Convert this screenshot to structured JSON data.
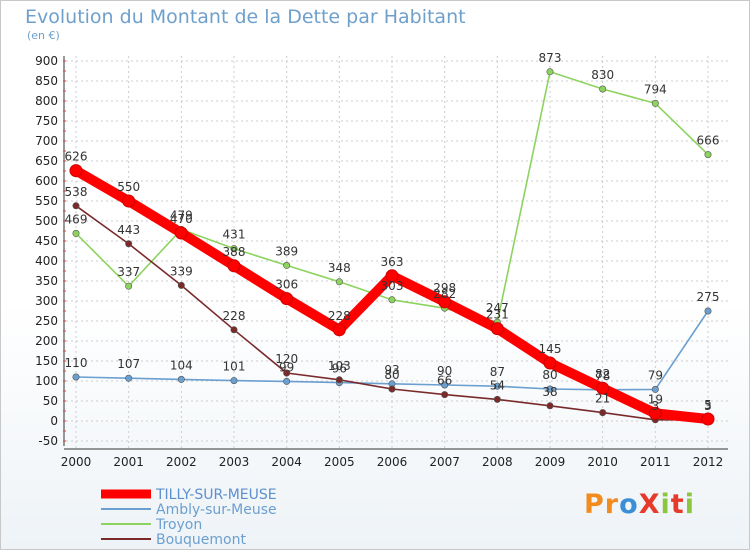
{
  "title": "Evolution du Montant de la Dette par Habitant",
  "subtitle": "(en €)",
  "logo": "ProXiti",
  "chart_data": {
    "type": "line",
    "title": "Evolution du Montant de la Dette par Habitant",
    "subtitle": "(en €)",
    "categories": [
      "2000",
      "2001",
      "2002",
      "2003",
      "2004",
      "2005",
      "2006",
      "2007",
      "2008",
      "2009",
      "2010",
      "2011",
      "2012"
    ],
    "ylim": [
      -50,
      900
    ],
    "yticks": [
      -50,
      0,
      50,
      100,
      150,
      200,
      250,
      300,
      350,
      400,
      450,
      500,
      550,
      600,
      650,
      700,
      750,
      800,
      850,
      900
    ],
    "grid": true,
    "legend_position": "bottom-left",
    "series": [
      {
        "name": "TILLY-SUR-MEUSE",
        "color": "#ff0000",
        "values": [
          626,
          550,
          470,
          388,
          306,
          228,
          363,
          298,
          231,
          145,
          82,
          19,
          5
        ]
      },
      {
        "name": "Ambly-sur-Meuse",
        "color": "#6b9fd0",
        "values": [
          110,
          107,
          104,
          101,
          99,
          96,
          93,
          90,
          87,
          80,
          78,
          79,
          275
        ]
      },
      {
        "name": "Troyon",
        "color": "#8dd35f",
        "values": [
          469,
          337,
          479,
          431,
          389,
          348,
          303,
          282,
          247,
          873,
          830,
          794,
          666
        ]
      },
      {
        "name": "Bouquemont",
        "color": "#7a2a2a",
        "values": [
          538,
          443,
          339,
          228,
          120,
          103,
          80,
          66,
          54,
          38,
          21,
          3,
          3
        ]
      }
    ]
  }
}
